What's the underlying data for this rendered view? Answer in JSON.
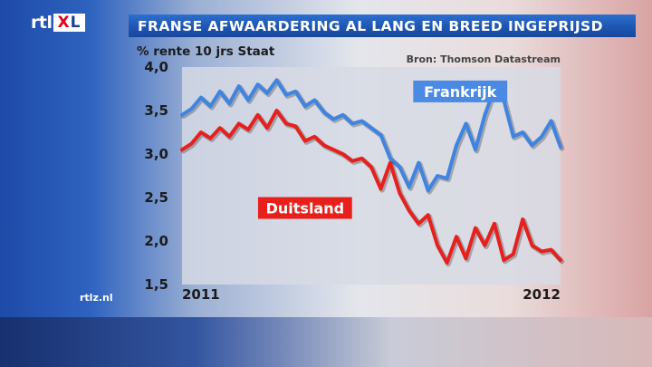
{
  "brand": {
    "rtl": "rtl",
    "x": "X",
    "l": "L"
  },
  "header": {
    "title": "FRANSE AFWAARDERING AL LANG EN BREED INGEPRIJSD"
  },
  "site": "rtlz.nl",
  "colors": {
    "frankrijk": "#3f84e0",
    "duitsland": "#e8201c",
    "title_bar": "#1f5cb8",
    "plot_bg": "#d7dae4"
  },
  "chart_data": {
    "type": "line",
    "title": "FRANSE AFWAARDERING AL LANG EN BREED INGEPRIJSD",
    "ylabel": "% rente 10 jrs Staat",
    "source": "Bron: Thomson Datastream",
    "ylim": [
      1.5,
      4.0
    ],
    "yticks": [
      "1,5",
      "2,0",
      "2,5",
      "3,0",
      "3,5",
      "4,0"
    ],
    "xlim": [
      2011.0,
      2012.0
    ],
    "xticks": [
      "2011",
      "2012"
    ],
    "grid": false,
    "legend": "inline labels",
    "series": [
      {
        "name": "Frankrijk",
        "color": "#3f84e0",
        "x": [
          2011.0,
          2011.025,
          2011.05,
          2011.075,
          2011.1,
          2011.125,
          2011.15,
          2011.175,
          2011.2,
          2011.225,
          2011.25,
          2011.275,
          2011.3,
          2011.325,
          2011.35,
          2011.375,
          2011.4,
          2011.425,
          2011.45,
          2011.475,
          2011.5,
          2011.525,
          2011.55,
          2011.575,
          2011.6,
          2011.625,
          2011.65,
          2011.675,
          2011.7,
          2011.725,
          2011.75,
          2011.775,
          2011.8,
          2011.825,
          2011.85,
          2011.875,
          2011.9,
          2011.925,
          2011.95,
          2011.975,
          2012.0
        ],
        "values": [
          3.45,
          3.52,
          3.65,
          3.55,
          3.72,
          3.58,
          3.78,
          3.62,
          3.8,
          3.7,
          3.85,
          3.68,
          3.72,
          3.55,
          3.62,
          3.48,
          3.4,
          3.45,
          3.35,
          3.38,
          3.3,
          3.22,
          2.95,
          2.85,
          2.62,
          2.9,
          2.58,
          2.75,
          2.72,
          3.1,
          3.35,
          3.05,
          3.45,
          3.75,
          3.62,
          3.2,
          3.25,
          3.1,
          3.2,
          3.38,
          3.08
        ]
      },
      {
        "name": "Duitsland",
        "color": "#e8201c",
        "x": [
          2011.0,
          2011.025,
          2011.05,
          2011.075,
          2011.1,
          2011.125,
          2011.15,
          2011.175,
          2011.2,
          2011.225,
          2011.25,
          2011.275,
          2011.3,
          2011.325,
          2011.35,
          2011.375,
          2011.4,
          2011.425,
          2011.45,
          2011.475,
          2011.5,
          2011.525,
          2011.55,
          2011.575,
          2011.6,
          2011.625,
          2011.65,
          2011.675,
          2011.7,
          2011.725,
          2011.75,
          2011.775,
          2011.8,
          2011.825,
          2011.85,
          2011.875,
          2011.9,
          2011.925,
          2011.95,
          2011.975,
          2012.0
        ],
        "values": [
          3.05,
          3.12,
          3.25,
          3.18,
          3.3,
          3.2,
          3.35,
          3.28,
          3.45,
          3.3,
          3.5,
          3.35,
          3.32,
          3.15,
          3.2,
          3.1,
          3.05,
          3.0,
          2.92,
          2.95,
          2.85,
          2.6,
          2.9,
          2.55,
          2.35,
          2.2,
          2.3,
          1.95,
          1.75,
          2.05,
          1.8,
          2.15,
          1.95,
          2.2,
          1.78,
          1.85,
          2.25,
          1.95,
          1.88,
          1.9,
          1.78
        ]
      }
    ]
  }
}
